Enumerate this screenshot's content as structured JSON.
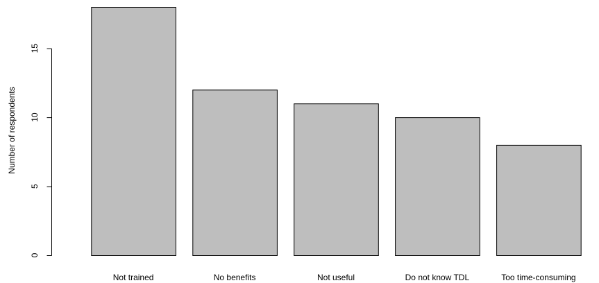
{
  "chart_data": {
    "type": "bar",
    "categories": [
      "Not trained",
      "No benefits",
      "Not useful",
      "Do not know TDL",
      "Too time-consuming"
    ],
    "values": [
      18,
      12,
      11,
      10,
      8
    ],
    "title": "",
    "xlabel": "",
    "ylabel": "Number of respondents",
    "ylim": [
      0,
      18
    ],
    "yticks": [
      0,
      5,
      10,
      15
    ],
    "grid": false,
    "colors": {
      "bar_fill": "#bebebe",
      "bar_stroke": "#000000"
    }
  }
}
